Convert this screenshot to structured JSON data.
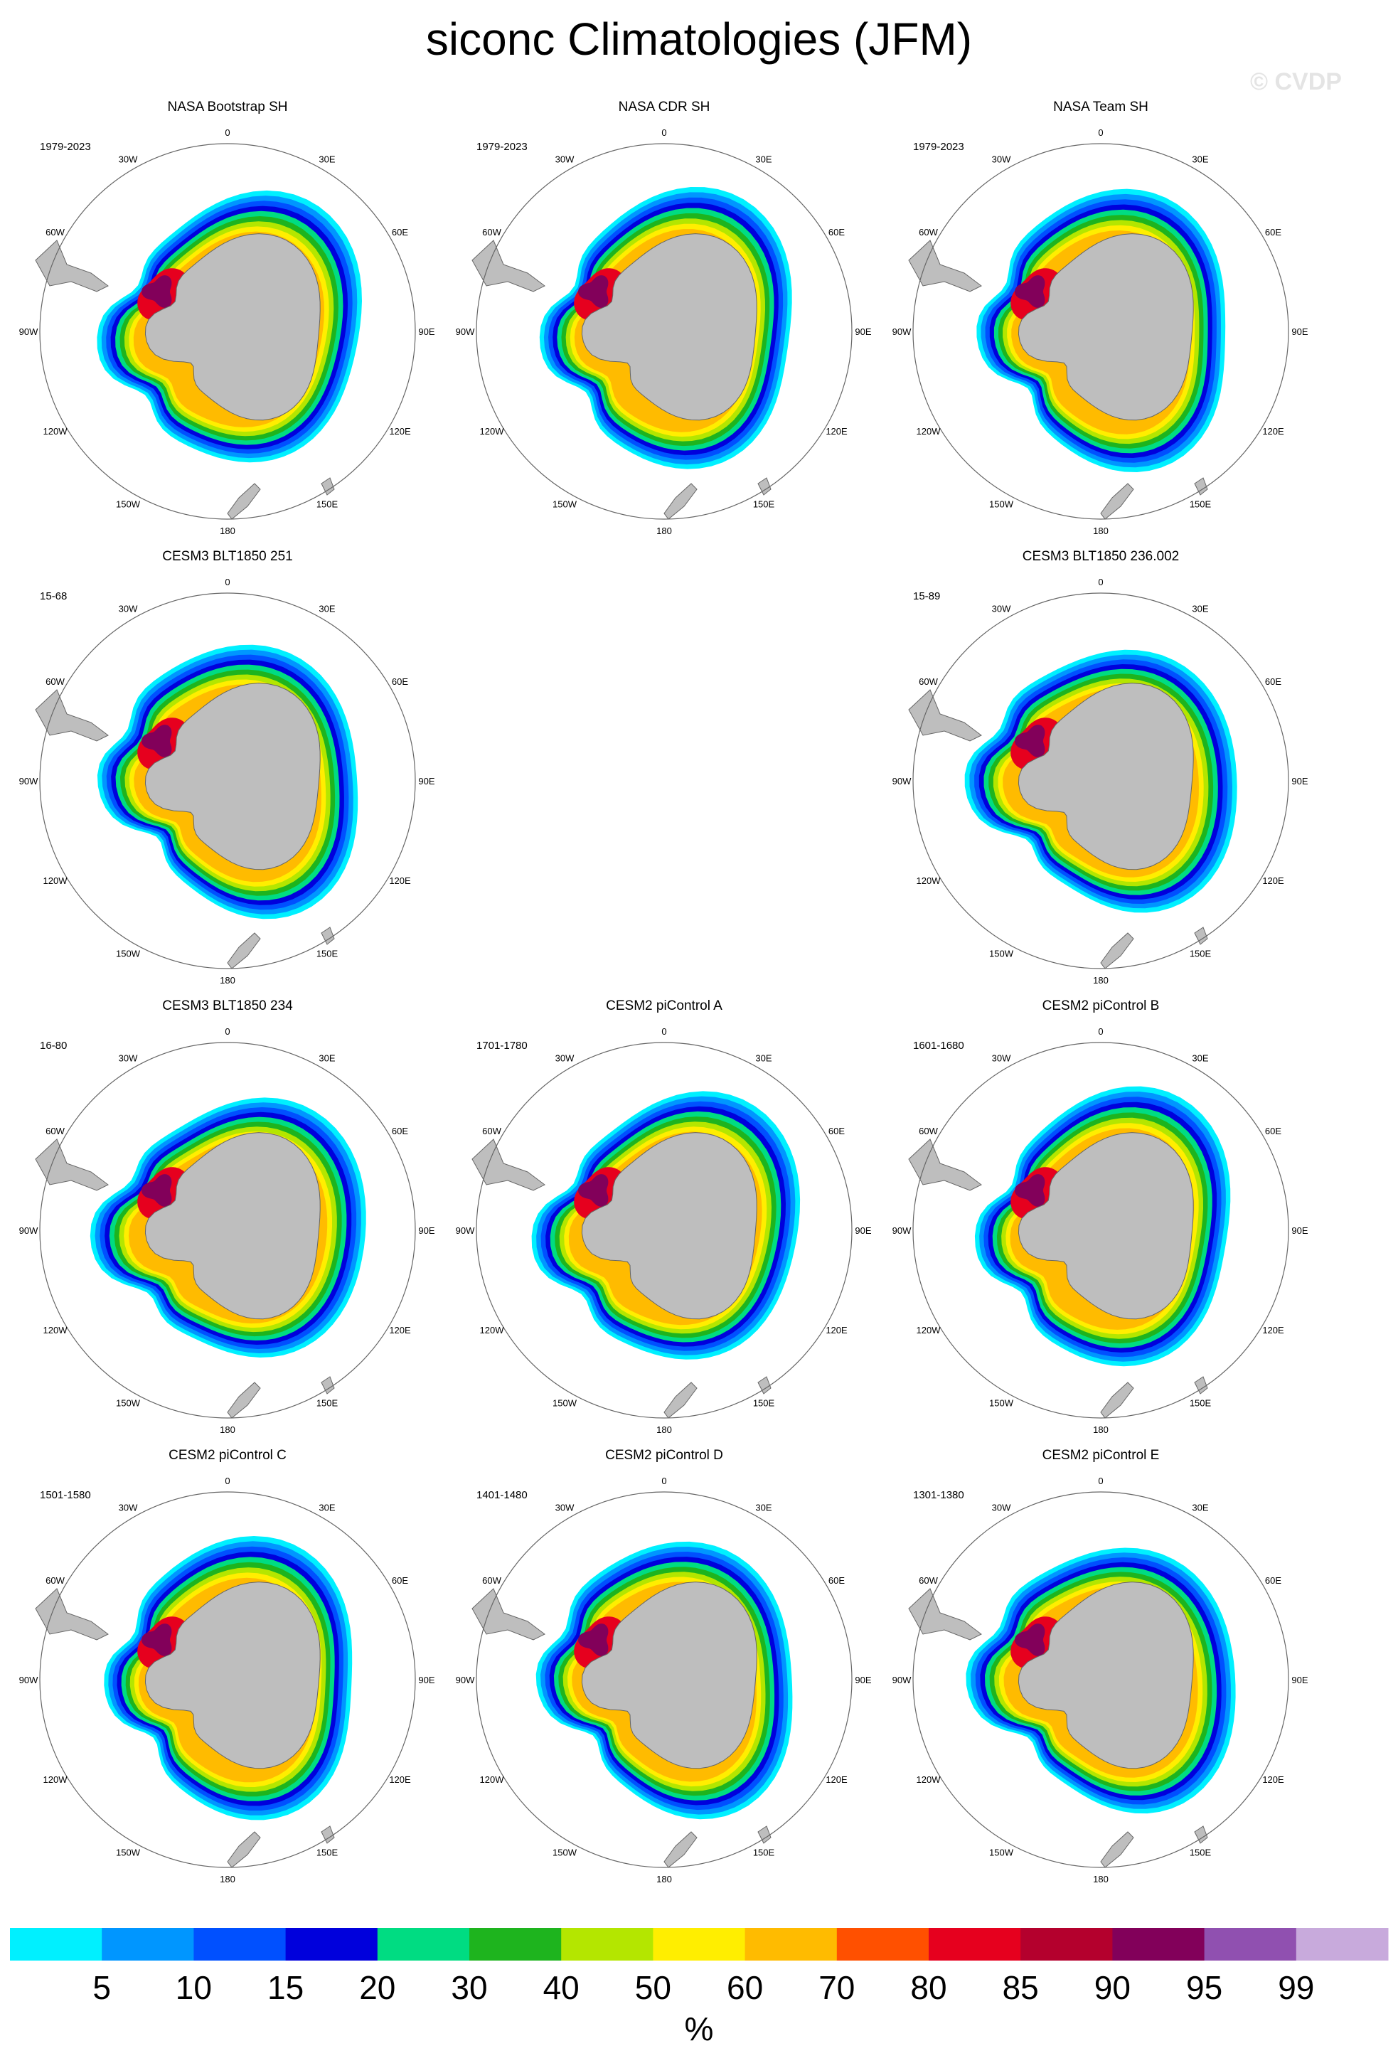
{
  "title": "siconc Climatologies (JFM)",
  "watermark": "© CVDP",
  "longitude_labels": [
    "0",
    "30E",
    "60E",
    "90E",
    "120E",
    "150E",
    "180",
    "150W",
    "120W",
    "90W",
    "60W",
    "30W"
  ],
  "panels": [
    {
      "title": "NASA Bootstrap SH",
      "years": "1979-2023"
    },
    {
      "title": "NASA CDR SH",
      "years": "1979-2023"
    },
    {
      "title": "NASA Team SH",
      "years": "1979-2023"
    },
    {
      "title": "CESM3 BLT1850 251",
      "years": "15-68"
    },
    {
      "title": "CESM3 BLT1850 236.002",
      "years": "15-89"
    },
    {
      "title": "CESM3 BLT1850 234",
      "years": "16-80"
    },
    {
      "title": "CESM2 piControl A",
      "years": "1701-1780"
    },
    {
      "title": "CESM2 piControl B",
      "years": "1601-1680"
    },
    {
      "title": "CESM2 piControl C",
      "years": "1501-1580"
    },
    {
      "title": "CESM2 piControl D",
      "years": "1401-1480"
    },
    {
      "title": "CESM2 piControl E",
      "years": "1301-1380"
    }
  ],
  "colorbar": {
    "colors": [
      "#00f0ff",
      "#0096ff",
      "#0050ff",
      "#0000dc",
      "#00dc82",
      "#1eb41e",
      "#b4e600",
      "#ffee00",
      "#ffbb00",
      "#ff5000",
      "#e6001e",
      "#b4002d",
      "#82005a",
      "#9050b0",
      "#c8aadc"
    ],
    "labels": [
      "5",
      "10",
      "15",
      "20",
      "30",
      "40",
      "50",
      "60",
      "70",
      "80",
      "85",
      "90",
      "95",
      "99"
    ],
    "units": "%"
  },
  "land_color": "#bebebe"
}
